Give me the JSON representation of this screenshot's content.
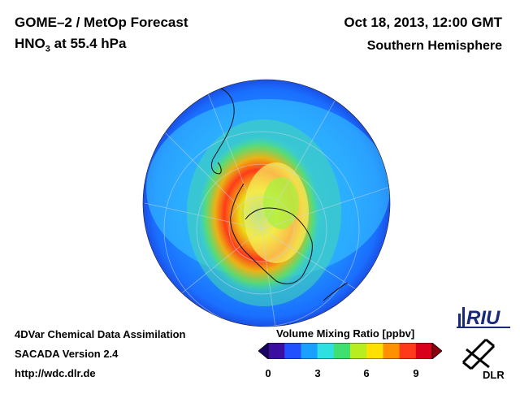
{
  "header": {
    "title": "GOME–2 / MetOp Forecast",
    "species": "HNO",
    "species_subscript": "3",
    "level": " at 55.4 hPa",
    "datetime": "Oct 18, 2013, 12:00 GMT",
    "region": "Southern Hemisphere"
  },
  "footer": {
    "line1": "4DVar Chemical Data Assimilation",
    "line2": "SACADA Version 2.4",
    "line3": "http://wdc.dlr.de"
  },
  "colorbar": {
    "title": "Volume Mixing Ratio [ppbv]",
    "ticks": [
      "0",
      "3",
      "6",
      "9"
    ],
    "min": 0,
    "max": 10,
    "colors": [
      "#3a0fa0",
      "#2050ff",
      "#1aa0ff",
      "#2ee0e0",
      "#40e070",
      "#b8ee20",
      "#ffe000",
      "#ff9000",
      "#ff3a1a",
      "#d8001a"
    ]
  },
  "logos": {
    "riu": "RIU",
    "dlr": "DLR"
  },
  "map": {
    "projection": "orthographic-south-pole",
    "field": "HNO3 volume mixing ratio",
    "background_color": "#1e78ff"
  }
}
